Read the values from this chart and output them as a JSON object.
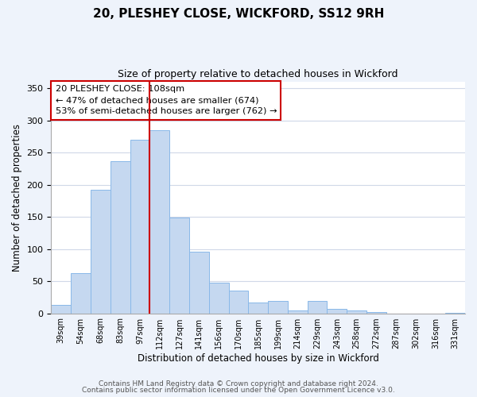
{
  "title": "20, PLESHEY CLOSE, WICKFORD, SS12 9RH",
  "subtitle": "Size of property relative to detached houses in Wickford",
  "xlabel": "Distribution of detached houses by size in Wickford",
  "ylabel": "Number of detached properties",
  "bar_labels": [
    "39sqm",
    "54sqm",
    "68sqm",
    "83sqm",
    "97sqm",
    "112sqm",
    "127sqm",
    "141sqm",
    "156sqm",
    "170sqm",
    "185sqm",
    "199sqm",
    "214sqm",
    "229sqm",
    "243sqm",
    "258sqm",
    "272sqm",
    "287sqm",
    "302sqm",
    "316sqm",
    "331sqm"
  ],
  "bar_values": [
    13,
    62,
    192,
    237,
    270,
    285,
    149,
    96,
    48,
    35,
    17,
    19,
    4,
    19,
    7,
    5,
    2,
    0,
    0,
    0,
    1
  ],
  "bar_color": "#c5d8f0",
  "bar_edgecolor": "#89b8e8",
  "vline_color": "#cc0000",
  "vline_pos": 4.5,
  "annotation_title": "20 PLESHEY CLOSE: 108sqm",
  "annotation_line1": "← 47% of detached houses are smaller (674)",
  "annotation_line2": "53% of semi-detached houses are larger (762) →",
  "annotation_box_facecolor": "#ffffff",
  "annotation_box_edgecolor": "#cc0000",
  "ylim": [
    0,
    360
  ],
  "yticks": [
    0,
    50,
    100,
    150,
    200,
    250,
    300,
    350
  ],
  "footer1": "Contains HM Land Registry data © Crown copyright and database right 2024.",
  "footer2": "Contains public sector information licensed under the Open Government Licence v3.0.",
  "background_color": "#eef3fb",
  "plot_bg_color": "#ffffff",
  "grid_color": "#d0d8e8"
}
